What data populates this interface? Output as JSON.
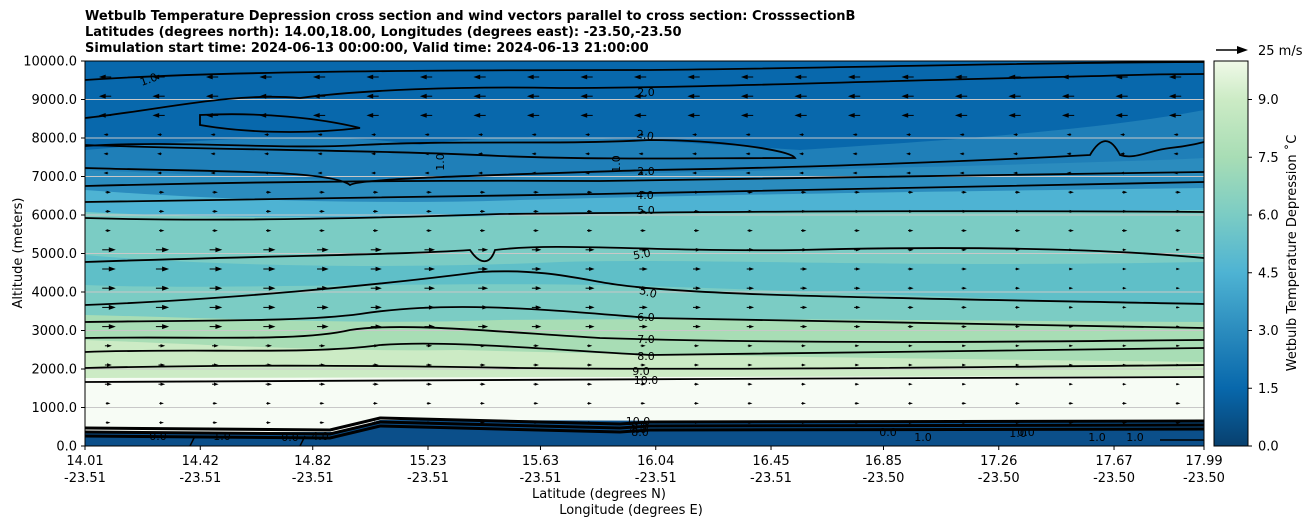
{
  "title_lines": [
    "Wetbulb Temperature Depression cross section and wind vectors parallel to cross section: CrosssectionB",
    "Latitudes (degrees north): 14.00,18.00, Longitudes (degrees east): -23.50,-23.50",
    "Simulation start time: 2024-06-13 00:00:00, Valid time: 2024-06-13 21:00:00"
  ],
  "chart_data": {
    "type": "contour",
    "ylabel": "Altitude (meters)",
    "xlabel_lat": "Latitude (degrees N)",
    "xlabel_lon": "Longitude (degrees E)",
    "ylim": [
      0,
      10000
    ],
    "yticks": [
      "0.0",
      "1000.0",
      "2000.0",
      "3000.0",
      "4000.0",
      "5000.0",
      "6000.0",
      "7000.0",
      "8000.0",
      "9000.0",
      "10000.0"
    ],
    "xticks_lat": [
      "14.01",
      "14.42",
      "14.82",
      "15.23",
      "15.63",
      "16.04",
      "16.45",
      "16.85",
      "17.26",
      "17.67",
      "17.99"
    ],
    "xticks_lon": [
      "-23.51",
      "-23.51",
      "-23.51",
      "-23.51",
      "-23.51",
      "-23.51",
      "-23.51",
      "-23.50",
      "-23.50",
      "-23.50",
      "-23.50"
    ],
    "xticks_value": [
      14.01,
      14.42,
      14.82,
      15.23,
      15.63,
      16.04,
      16.45,
      16.85,
      17.26,
      17.67,
      17.99
    ],
    "xlim": [
      14.01,
      17.99
    ],
    "colorbar": {
      "label": "Wetbulb Temperature Depression ˚C",
      "range": [
        0,
        10
      ],
      "ticks": [
        "0.0",
        "1.5",
        "3.0",
        "4.5",
        "6.0",
        "7.5",
        "9.0"
      ],
      "tick_values": [
        0,
        1.5,
        3,
        4.5,
        6,
        7.5,
        9
      ]
    },
    "quiver_key": "25 m/s",
    "contours": [
      {
        "label": "10.0",
        "altitude": 1700
      },
      {
        "label": "9.0",
        "altitude": 1950
      },
      {
        "label": "8.0",
        "altitude": 2300
      },
      {
        "label": "7.0",
        "altitude": 2750
      },
      {
        "label": "6.0",
        "altitude": 3350
      },
      {
        "label": "5.0",
        "altitude": 3950
      },
      {
        "label": "5.0",
        "altitude": 4900
      },
      {
        "label": "5.0",
        "altitude": 6150
      },
      {
        "label": "4.0",
        "altitude": 6500
      },
      {
        "label": "2.0",
        "altitude": 7100
      },
      {
        "label": "2.0",
        "altitude": 8000
      },
      {
        "label": "2.0",
        "altitude": 9100
      },
      {
        "label": "1.0",
        "altitude": 7200
      },
      {
        "label": "1.0",
        "altitude": 7200
      }
    ],
    "surface_labels": [
      "1.0",
      "0.0",
      "4.0",
      "1.0",
      "0.0",
      "1.0",
      "0.0",
      "1.0",
      "1.0",
      "1.0",
      "0.0",
      "10.0",
      "9.0",
      "8.0",
      "4.0"
    ]
  },
  "colors": {
    "dark_blue": "#08589e",
    "mid_blue": "#2b8cbe",
    "light_blue": "#4eb3d3",
    "teal": "#7bccc4",
    "light_green": "#a8ddb5",
    "pale_green": "#ccebc5",
    "near_white": "#e0f3db"
  }
}
